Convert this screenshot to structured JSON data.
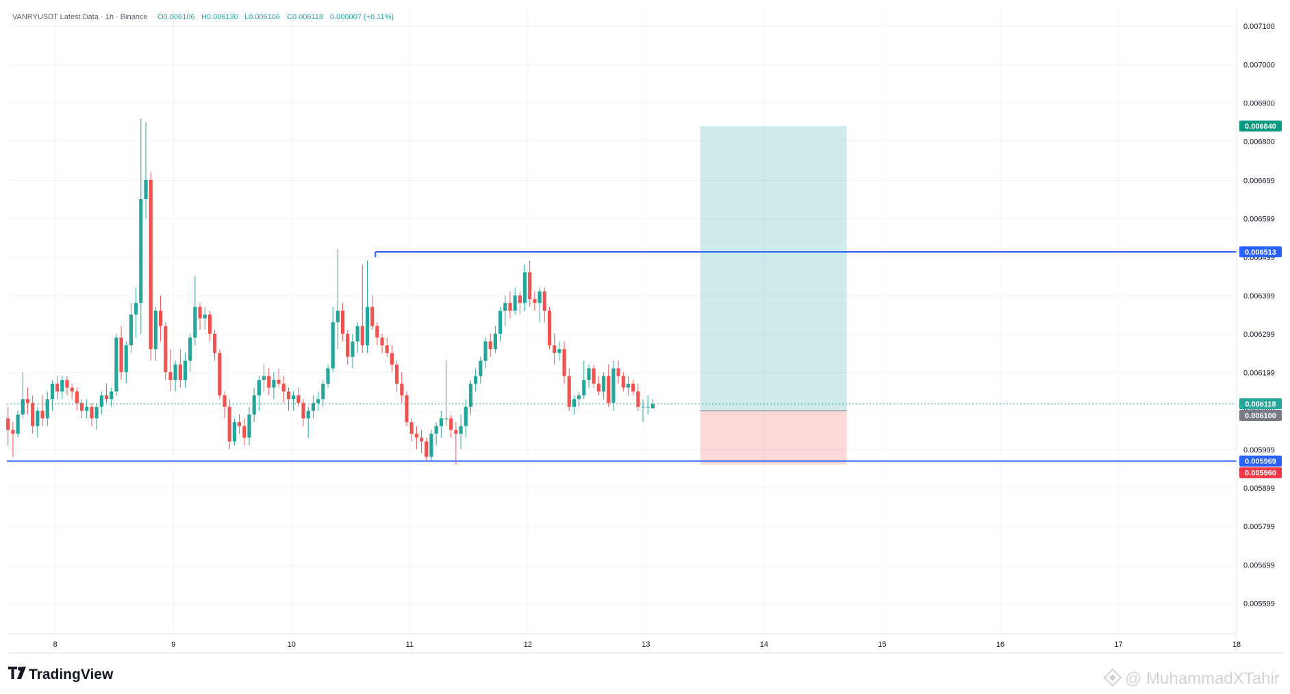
{
  "legend": {
    "symbol": "VANRYUSDT Latest Data · 1h · Binance",
    "open": "O0.006106",
    "high": "H0.006130",
    "low": "L0.006106",
    "close": "C0.006118",
    "change": "0.000007 (+0.11%)"
  },
  "branding": {
    "logo_text": "TradingView",
    "watermark": "@ MuhammadXTahir"
  },
  "colors": {
    "up": "#26a69a",
    "down": "#ef5350",
    "level_line": "#2962ff",
    "profit_zone": "#26a69a",
    "loss_zone": "#ef5350",
    "grid": "#f0f3fa",
    "current_price": "#26a69a",
    "entry_badge": "#787b86"
  },
  "chart_data": {
    "type": "candlestick",
    "symbol": "VANRYUSDT",
    "interval": "1h",
    "exchange": "Binance",
    "y_axis_ticks": [
      "0.007100",
      "0.007000",
      "0.006900",
      "0.006800",
      "0.006699",
      "0.006599",
      "0.006499",
      "0.006399",
      "0.006299",
      "0.006199",
      "0.006099",
      "0.005999",
      "0.005899",
      "0.005799",
      "0.005699",
      "0.005599"
    ],
    "x_axis_ticks": [
      "8",
      "9",
      "10",
      "11",
      "12",
      "13",
      "14",
      "15",
      "16",
      "17",
      "18"
    ],
    "ylim": [
      0.00552,
      0.00715
    ],
    "xlim_days": [
      7.59,
      18.0
    ],
    "grid": true,
    "last_price": 0.006118,
    "horizontal_levels": [
      {
        "value": 0.006513,
        "label": "0.006513",
        "start_day": 10.71
      },
      {
        "value": 0.005969,
        "label": "0.005969",
        "start_day": 7.59
      }
    ],
    "position": {
      "type": "long",
      "entry": 0.0061,
      "entry_label": "0.006100",
      "target": 0.00684,
      "target_label": "0.006840",
      "stop": 0.00596,
      "stop_label": "0.005960",
      "start_day": 13.46,
      "end_day": 14.7
    },
    "price_badges": [
      {
        "label": "0.006840",
        "kind": "target"
      },
      {
        "label": "0.006513",
        "kind": "level"
      },
      {
        "label": "0.006118",
        "kind": "current"
      },
      {
        "label": "0.006100",
        "kind": "entry"
      },
      {
        "label": "0.005969",
        "kind": "level"
      },
      {
        "label": "0.005960",
        "kind": "stop"
      }
    ],
    "candle_start_day": 7.6,
    "candle_interval_hours": 1,
    "candles": [
      [
        0.00608,
        0.00611,
        0.00601,
        0.00605
      ],
      [
        0.00605,
        0.00607,
        0.00598,
        0.00604
      ],
      [
        0.00604,
        0.0061,
        0.00603,
        0.00609
      ],
      [
        0.00609,
        0.0062,
        0.00608,
        0.00613
      ],
      [
        0.00613,
        0.00616,
        0.00609,
        0.00612
      ],
      [
        0.00612,
        0.00614,
        0.00604,
        0.00606
      ],
      [
        0.00606,
        0.00611,
        0.00603,
        0.0061
      ],
      [
        0.0061,
        0.00614,
        0.00606,
        0.00608
      ],
      [
        0.00608,
        0.00615,
        0.00606,
        0.00613
      ],
      [
        0.00613,
        0.00618,
        0.0061,
        0.00617
      ],
      [
        0.00617,
        0.00619,
        0.00613,
        0.00615
      ],
      [
        0.00615,
        0.00619,
        0.00613,
        0.00618
      ],
      [
        0.00618,
        0.00619,
        0.00614,
        0.00616
      ],
      [
        0.00616,
        0.00617,
        0.00613,
        0.00615
      ],
      [
        0.00615,
        0.00616,
        0.0061,
        0.00612
      ],
      [
        0.00612,
        0.00613,
        0.00608,
        0.0061
      ],
      [
        0.0061,
        0.00613,
        0.00608,
        0.00611
      ],
      [
        0.00611,
        0.00612,
        0.00606,
        0.00608
      ],
      [
        0.00608,
        0.00612,
        0.00605,
        0.00611
      ],
      [
        0.00611,
        0.00615,
        0.00609,
        0.00614
      ],
      [
        0.00614,
        0.00617,
        0.00612,
        0.00613
      ],
      [
        0.00613,
        0.00616,
        0.00611,
        0.00615
      ],
      [
        0.00615,
        0.0063,
        0.00614,
        0.00629
      ],
      [
        0.00629,
        0.00632,
        0.00618,
        0.0062
      ],
      [
        0.0062,
        0.00628,
        0.00617,
        0.00627
      ],
      [
        0.00627,
        0.00638,
        0.00625,
        0.00635
      ],
      [
        0.00635,
        0.00642,
        0.00629,
        0.00638
      ],
      [
        0.00638,
        0.00686,
        0.0063,
        0.00665
      ],
      [
        0.00665,
        0.00685,
        0.0066,
        0.0067
      ],
      [
        0.0067,
        0.00672,
        0.00623,
        0.00626
      ],
      [
        0.00626,
        0.00637,
        0.00623,
        0.00636
      ],
      [
        0.00636,
        0.0064,
        0.00628,
        0.00632
      ],
      [
        0.00632,
        0.00633,
        0.00618,
        0.0062
      ],
      [
        0.0062,
        0.00626,
        0.00615,
        0.00618
      ],
      [
        0.00618,
        0.00623,
        0.00615,
        0.00622
      ],
      [
        0.00622,
        0.00626,
        0.00616,
        0.00618
      ],
      [
        0.00618,
        0.00625,
        0.00616,
        0.00623
      ],
      [
        0.00623,
        0.0063,
        0.0062,
        0.00629
      ],
      [
        0.00629,
        0.00645,
        0.00627,
        0.00637
      ],
      [
        0.00637,
        0.00638,
        0.00631,
        0.00634
      ],
      [
        0.00634,
        0.00637,
        0.00631,
        0.00635
      ],
      [
        0.00635,
        0.00636,
        0.00628,
        0.0063
      ],
      [
        0.0063,
        0.00631,
        0.00623,
        0.00625
      ],
      [
        0.00625,
        0.00626,
        0.00613,
        0.00614
      ],
      [
        0.00614,
        0.00615,
        0.00608,
        0.00611
      ],
      [
        0.00611,
        0.00613,
        0.006,
        0.00602
      ],
      [
        0.00602,
        0.00608,
        0.00601,
        0.00607
      ],
      [
        0.00607,
        0.00609,
        0.00604,
        0.00606
      ],
      [
        0.00606,
        0.00608,
        0.00601,
        0.00603
      ],
      [
        0.00603,
        0.00611,
        0.00601,
        0.00609
      ],
      [
        0.00609,
        0.00616,
        0.00607,
        0.00614
      ],
      [
        0.00614,
        0.00619,
        0.0061,
        0.00618
      ],
      [
        0.00618,
        0.00622,
        0.00615,
        0.00619
      ],
      [
        0.00619,
        0.00621,
        0.00614,
        0.00616
      ],
      [
        0.00616,
        0.0062,
        0.00613,
        0.00618
      ],
      [
        0.00618,
        0.00621,
        0.00616,
        0.00617
      ],
      [
        0.00617,
        0.00619,
        0.00612,
        0.00615
      ],
      [
        0.00615,
        0.00616,
        0.0061,
        0.00613
      ],
      [
        0.00613,
        0.00615,
        0.0061,
        0.00614
      ],
      [
        0.00614,
        0.00616,
        0.00611,
        0.00612
      ],
      [
        0.00612,
        0.00613,
        0.00606,
        0.00608
      ],
      [
        0.00608,
        0.00611,
        0.00603,
        0.0061
      ],
      [
        0.0061,
        0.00614,
        0.00608,
        0.00612
      ],
      [
        0.00612,
        0.00615,
        0.0061,
        0.00613
      ],
      [
        0.00613,
        0.00618,
        0.00611,
        0.00617
      ],
      [
        0.00617,
        0.00622,
        0.00616,
        0.00621
      ],
      [
        0.00621,
        0.00637,
        0.0062,
        0.00633
      ],
      [
        0.00633,
        0.00652,
        0.00626,
        0.00636
      ],
      [
        0.00636,
        0.00638,
        0.00628,
        0.0063
      ],
      [
        0.0063,
        0.00631,
        0.00622,
        0.00624
      ],
      [
        0.00624,
        0.0063,
        0.00621,
        0.00628
      ],
      [
        0.00628,
        0.00633,
        0.00625,
        0.00632
      ],
      [
        0.00632,
        0.00648,
        0.00625,
        0.00627
      ],
      [
        0.00627,
        0.00649,
        0.00625,
        0.00637
      ],
      [
        0.00637,
        0.0064,
        0.00631,
        0.00632
      ],
      [
        0.00632,
        0.00633,
        0.00627,
        0.00629
      ],
      [
        0.00629,
        0.0063,
        0.00625,
        0.00627
      ],
      [
        0.00627,
        0.00629,
        0.00624,
        0.00625
      ],
      [
        0.00625,
        0.00627,
        0.0062,
        0.00622
      ],
      [
        0.00622,
        0.00623,
        0.00615,
        0.00617
      ],
      [
        0.00617,
        0.0062,
        0.00612,
        0.00614
      ],
      [
        0.00614,
        0.00615,
        0.00606,
        0.00607
      ],
      [
        0.00607,
        0.00608,
        0.00602,
        0.00604
      ],
      [
        0.00604,
        0.00606,
        0.006,
        0.00603
      ],
      [
        0.00603,
        0.00605,
        0.00599,
        0.00602
      ],
      [
        0.00602,
        0.00603,
        0.00597,
        0.00598
      ],
      [
        0.00598,
        0.00605,
        0.00597,
        0.00604
      ],
      [
        0.00604,
        0.00607,
        0.00601,
        0.00606
      ],
      [
        0.00606,
        0.0061,
        0.00603,
        0.00608
      ],
      [
        0.00608,
        0.00623,
        0.00606,
        0.00608
      ],
      [
        0.00608,
        0.00609,
        0.00603,
        0.00605
      ],
      [
        0.00605,
        0.00607,
        0.00596,
        0.00604
      ],
      [
        0.00604,
        0.00609,
        0.006,
        0.00606
      ],
      [
        0.00606,
        0.00613,
        0.00603,
        0.00611
      ],
      [
        0.00611,
        0.00618,
        0.00609,
        0.00617
      ],
      [
        0.00617,
        0.00621,
        0.00615,
        0.00619
      ],
      [
        0.00619,
        0.00624,
        0.00617,
        0.00623
      ],
      [
        0.00623,
        0.00629,
        0.00621,
        0.00628
      ],
      [
        0.00628,
        0.0063,
        0.00624,
        0.00626
      ],
      [
        0.00626,
        0.00632,
        0.00625,
        0.0063
      ],
      [
        0.0063,
        0.00637,
        0.00628,
        0.00636
      ],
      [
        0.00636,
        0.0064,
        0.00632,
        0.00638
      ],
      [
        0.00638,
        0.00641,
        0.00634,
        0.00636
      ],
      [
        0.00636,
        0.00642,
        0.00635,
        0.0064
      ],
      [
        0.0064,
        0.00641,
        0.00635,
        0.00638
      ],
      [
        0.00638,
        0.00648,
        0.00636,
        0.00646
      ],
      [
        0.00646,
        0.00649,
        0.00637,
        0.00639
      ],
      [
        0.00639,
        0.00641,
        0.00636,
        0.00638
      ],
      [
        0.00638,
        0.00642,
        0.00633,
        0.00641
      ],
      [
        0.00641,
        0.00642,
        0.00633,
        0.00636
      ],
      [
        0.00636,
        0.00637,
        0.00626,
        0.00627
      ],
      [
        0.00627,
        0.0063,
        0.00622,
        0.00625
      ],
      [
        0.00625,
        0.00628,
        0.00623,
        0.00626
      ],
      [
        0.00626,
        0.00628,
        0.00617,
        0.00619
      ],
      [
        0.00619,
        0.00621,
        0.0061,
        0.00611
      ],
      [
        0.00611,
        0.00614,
        0.00609,
        0.00613
      ],
      [
        0.00613,
        0.00615,
        0.00611,
        0.00614
      ],
      [
        0.00614,
        0.00623,
        0.00613,
        0.00618
      ],
      [
        0.00618,
        0.00622,
        0.00616,
        0.00621
      ],
      [
        0.00621,
        0.00622,
        0.00616,
        0.00617
      ],
      [
        0.00617,
        0.00619,
        0.00614,
        0.00615
      ],
      [
        0.00615,
        0.0062,
        0.00613,
        0.00619
      ],
      [
        0.00619,
        0.00622,
        0.00611,
        0.00612
      ],
      [
        0.00612,
        0.00623,
        0.0061,
        0.00621
      ],
      [
        0.00621,
        0.00623,
        0.00617,
        0.00619
      ],
      [
        0.00619,
        0.0062,
        0.00615,
        0.00616
      ],
      [
        0.00616,
        0.00619,
        0.00614,
        0.00617
      ],
      [
        0.00617,
        0.00618,
        0.00614,
        0.00615
      ],
      [
        0.00615,
        0.00617,
        0.0061,
        0.00611
      ],
      [
        0.00611,
        0.00613,
        0.00607,
        0.00611
      ],
      [
        0.00611,
        0.00614,
        0.00609,
        0.00611
      ],
      [
        0.006106,
        0.00613,
        0.006106,
        0.006118
      ]
    ]
  }
}
